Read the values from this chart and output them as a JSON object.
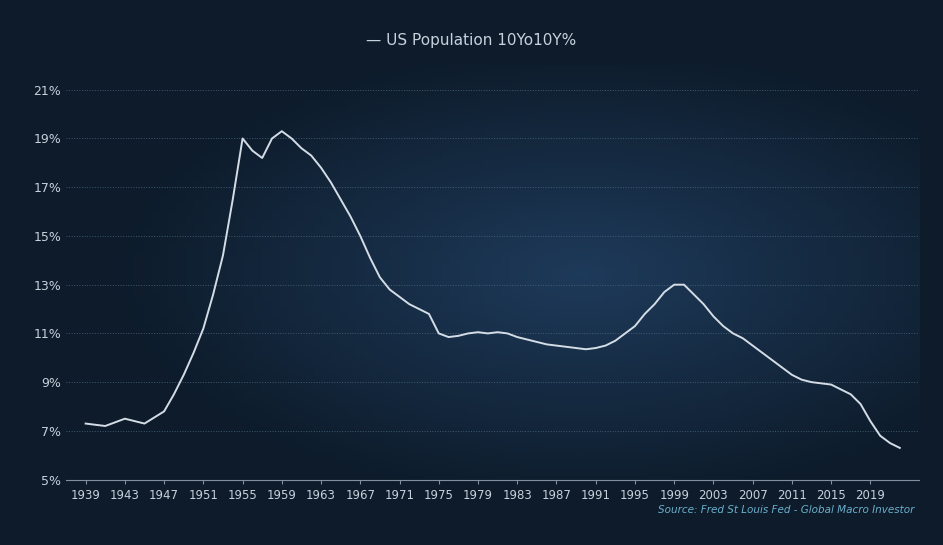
{
  "title": "— US Population 10Yo10Y%",
  "source_text": "Source: Fred St Louis Fed - Global Macro Investor",
  "bg_color_outer": "#0d1b2a",
  "bg_color_inner": "#1e3a5a",
  "line_color": "#d4dde6",
  "grid_color": "#4a6a80",
  "text_color": "#c5d2dc",
  "source_color": "#6ab0cc",
  "title_color": "#c5d2dc",
  "ylim": [
    5,
    22
  ],
  "yticks": [
    5,
    7,
    9,
    11,
    13,
    15,
    17,
    19,
    21
  ],
  "ytick_labels": [
    "5%",
    "7%",
    "9%",
    "11%",
    "13%",
    "15%",
    "17%",
    "19%",
    "21%"
  ],
  "xticks": [
    1939,
    1943,
    1947,
    1951,
    1955,
    1959,
    1963,
    1967,
    1971,
    1975,
    1979,
    1983,
    1987,
    1991,
    1995,
    1999,
    2003,
    2007,
    2011,
    2015,
    2019
  ],
  "years": [
    1939,
    1940,
    1941,
    1942,
    1943,
    1944,
    1945,
    1946,
    1947,
    1948,
    1949,
    1950,
    1951,
    1952,
    1953,
    1954,
    1955,
    1956,
    1957,
    1958,
    1959,
    1960,
    1961,
    1962,
    1963,
    1964,
    1965,
    1966,
    1967,
    1968,
    1969,
    1970,
    1971,
    1972,
    1973,
    1974,
    1975,
    1976,
    1977,
    1978,
    1979,
    1980,
    1981,
    1982,
    1983,
    1984,
    1985,
    1986,
    1987,
    1988,
    1989,
    1990,
    1991,
    1992,
    1993,
    1994,
    1995,
    1996,
    1997,
    1998,
    1999,
    2000,
    2001,
    2002,
    2003,
    2004,
    2005,
    2006,
    2007,
    2008,
    2009,
    2010,
    2011,
    2012,
    2013,
    2014,
    2015,
    2016,
    2017,
    2018,
    2019,
    2020,
    2021,
    2022
  ],
  "values": [
    7.3,
    7.25,
    7.2,
    7.35,
    7.5,
    7.4,
    7.3,
    7.55,
    7.8,
    8.5,
    9.3,
    10.2,
    11.2,
    12.6,
    14.2,
    16.5,
    19.0,
    18.5,
    18.2,
    19.0,
    19.3,
    19.0,
    18.6,
    18.3,
    17.8,
    17.2,
    16.5,
    15.8,
    15.0,
    14.1,
    13.3,
    12.8,
    12.5,
    12.2,
    12.0,
    11.8,
    11.0,
    10.85,
    10.9,
    11.0,
    11.05,
    11.0,
    11.05,
    11.0,
    10.85,
    10.75,
    10.65,
    10.55,
    10.5,
    10.45,
    10.4,
    10.35,
    10.4,
    10.5,
    10.7,
    11.0,
    11.3,
    11.8,
    12.2,
    12.7,
    13.0,
    13.0,
    12.6,
    12.2,
    11.7,
    11.3,
    11.0,
    10.8,
    10.5,
    10.2,
    9.9,
    9.6,
    9.3,
    9.1,
    9.0,
    8.95,
    8.9,
    8.7,
    8.5,
    8.1,
    7.4,
    6.8,
    6.5,
    6.3
  ]
}
